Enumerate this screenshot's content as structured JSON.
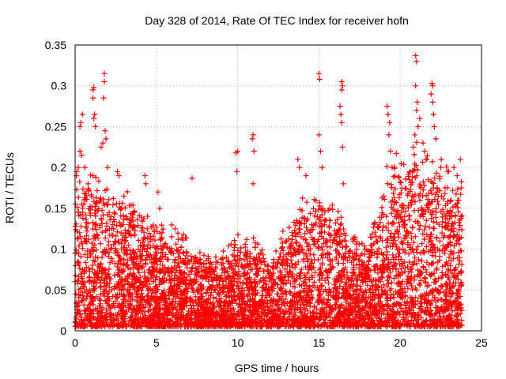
{
  "chart_data": {
    "type": "scatter",
    "title": "Day 328 of 2014, Rate Of TEC Index for receiver hofn",
    "xlabel": "GPS time / hours",
    "ylabel": "ROTI / TECUs",
    "xlim": [
      0,
      25
    ],
    "ylim": [
      0,
      0.35
    ],
    "x_ticks": [
      0,
      5,
      10,
      15,
      20,
      25
    ],
    "y_ticks": [
      0,
      0.05,
      0.1,
      0.15,
      0.2,
      0.25,
      0.3,
      0.35
    ],
    "x_tick_labels": [
      "0",
      "5",
      "10",
      "15",
      "20",
      "25"
    ],
    "y_tick_labels": [
      "0",
      "0.05",
      "0.1",
      "0.15",
      "0.2",
      "0.25",
      "0.3",
      "0.35"
    ],
    "grid": true,
    "marker": "+",
    "marker_color": "#ff0000",
    "series": [
      {
        "name": "ROTI",
        "points": [
          [
            0.1,
            0.195
          ],
          [
            0.2,
            0.2
          ],
          [
            0.3,
            0.25
          ],
          [
            0.35,
            0.255
          ],
          [
            0.45,
            0.265
          ],
          [
            0.3,
            0.22
          ],
          [
            0.4,
            0.215
          ],
          [
            0.6,
            0.2
          ],
          [
            0.8,
            0.18
          ],
          [
            1.1,
            0.295
          ],
          [
            1.15,
            0.298
          ],
          [
            1.1,
            0.285
          ],
          [
            1.2,
            0.265
          ],
          [
            1.15,
            0.26
          ],
          [
            1.25,
            0.25
          ],
          [
            1.8,
            0.315
          ],
          [
            1.8,
            0.305
          ],
          [
            1.75,
            0.285
          ],
          [
            1.85,
            0.245
          ],
          [
            1.7,
            0.23
          ],
          [
            1.6,
            0.225
          ],
          [
            1.9,
            0.235
          ],
          [
            2.0,
            0.2
          ],
          [
            2.6,
            0.195
          ],
          [
            2.7,
            0.19
          ],
          [
            3.0,
            0.165
          ],
          [
            4.3,
            0.19
          ],
          [
            4.35,
            0.18
          ],
          [
            5.1,
            0.17
          ],
          [
            5.2,
            0.15
          ],
          [
            7.2,
            0.187
          ],
          [
            9.9,
            0.218
          ],
          [
            10.0,
            0.22
          ],
          [
            9.95,
            0.195
          ],
          [
            10.95,
            0.24
          ],
          [
            10.9,
            0.235
          ],
          [
            11.0,
            0.22
          ],
          [
            10.95,
            0.18
          ],
          [
            13.7,
            0.21
          ],
          [
            13.8,
            0.2
          ],
          [
            14.2,
            0.19
          ],
          [
            15.0,
            0.315
          ],
          [
            15.05,
            0.308
          ],
          [
            15.0,
            0.24
          ],
          [
            15.1,
            0.22
          ],
          [
            15.2,
            0.2
          ],
          [
            16.4,
            0.305
          ],
          [
            16.45,
            0.3
          ],
          [
            16.4,
            0.295
          ],
          [
            16.3,
            0.275
          ],
          [
            16.35,
            0.265
          ],
          [
            16.4,
            0.255
          ],
          [
            16.45,
            0.225
          ],
          [
            16.5,
            0.18
          ],
          [
            19.2,
            0.275
          ],
          [
            19.25,
            0.265
          ],
          [
            19.35,
            0.255
          ],
          [
            19.3,
            0.24
          ],
          [
            19.4,
            0.22
          ],
          [
            19.5,
            0.2
          ],
          [
            20.6,
            0.195
          ],
          [
            20.8,
            0.225
          ],
          [
            20.9,
            0.24
          ],
          [
            21.0,
            0.27
          ],
          [
            21.1,
            0.25
          ],
          [
            21.2,
            0.26
          ],
          [
            20.95,
            0.337
          ],
          [
            21.0,
            0.33
          ],
          [
            20.95,
            0.3
          ],
          [
            21.05,
            0.28
          ],
          [
            21.4,
            0.23
          ],
          [
            21.5,
            0.22
          ],
          [
            21.6,
            0.21
          ],
          [
            21.95,
            0.303
          ],
          [
            22.0,
            0.3
          ],
          [
            21.9,
            0.29
          ],
          [
            22.0,
            0.28
          ],
          [
            22.05,
            0.265
          ],
          [
            22.1,
            0.25
          ],
          [
            22.2,
            0.235
          ],
          [
            22.5,
            0.2
          ],
          [
            22.9,
            0.195
          ],
          [
            23.3,
            0.2
          ],
          [
            23.5,
            0.19
          ],
          [
            23.7,
            0.21
          ],
          [
            23.75,
            0.175
          ],
          [
            23.6,
            0.16
          ]
        ],
        "activity_envelope": {
          "hours": [
            0,
            1,
            2,
            3,
            4,
            5,
            6,
            7,
            8,
            9,
            10,
            11,
            12,
            13,
            14,
            15,
            16,
            17,
            18,
            19,
            20,
            21,
            22,
            23,
            23.8
          ],
          "typical_max": [
            0.17,
            0.17,
            0.16,
            0.15,
            0.13,
            0.12,
            0.11,
            0.1,
            0.08,
            0.08,
            0.11,
            0.1,
            0.07,
            0.12,
            0.15,
            0.15,
            0.14,
            0.1,
            0.1,
            0.17,
            0.19,
            0.2,
            0.19,
            0.18,
            0.16
          ],
          "floor": 0.005
        }
      }
    ]
  }
}
